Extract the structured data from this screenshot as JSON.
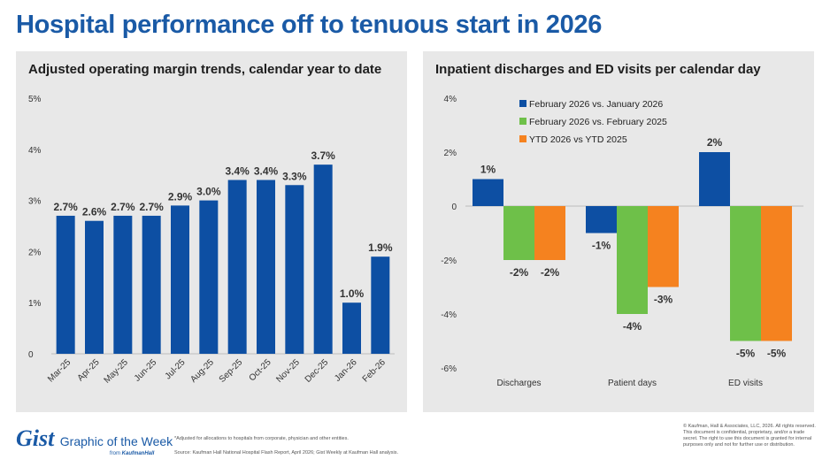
{
  "title": "Hospital performance off to tenuous start in 2026",
  "footer": {
    "logo": "Gist",
    "tagline": "Graphic of the Week",
    "from_text": "from",
    "from_brand": "KaufmanHall",
    "footnote": "*Adjusted for allocations to hospitals from corporate, physician and other entities.",
    "source": "Source: Kaufman Hall National Hospital Flash Report, April 2026; Gist Weekly at Kaufman Hall analysis.",
    "copyright": "© Kaufman, Hall & Associates, LLC, 2026. All rights reserved. This document is confidential, proprietary, and/or a trade secret. The right to use this document is granted for internal purposes only and not for further use or distribution."
  },
  "colors": {
    "title": "#1a5aa6",
    "blue": "#0d4fa3",
    "green": "#6ec049",
    "orange": "#f5821f",
    "panel_bg": "#e8e8e8"
  },
  "chart_data": [
    {
      "type": "bar",
      "title": "Adjusted operating margin trends, calendar year to date",
      "categories": [
        "Mar-25",
        "Apr-25",
        "May-25",
        "Jun-25",
        "Jul-25",
        "Aug-25",
        "Sep-25",
        "Oct-25",
        "Nov-25",
        "Dec-25",
        "Jan-26",
        "Feb-26"
      ],
      "values": [
        2.7,
        2.6,
        2.7,
        2.7,
        2.9,
        3.0,
        3.4,
        3.4,
        3.3,
        3.7,
        1.0,
        1.9
      ],
      "labels": [
        "2.7%",
        "2.6%",
        "2.7%",
        "2.7%",
        "2.9%",
        "3.0%",
        "3.4%",
        "3.4%",
        "3.3%",
        "3.7%",
        "1.0%",
        "1.9%"
      ],
      "yticks": [
        "0",
        "1%",
        "2%",
        "3%",
        "4%",
        "5%"
      ],
      "ylim": [
        0,
        5
      ],
      "grid": false
    },
    {
      "type": "bar",
      "title": "Inpatient discharges and ED visits per calendar day",
      "categories": [
        "Discharges",
        "Patient days",
        "ED visits"
      ],
      "series": [
        {
          "name": "February 2026 vs. January 2026",
          "values": [
            1,
            -1,
            2
          ],
          "labels": [
            "1%",
            "-1%",
            "2%"
          ],
          "color": "#0d4fa3"
        },
        {
          "name": "February 2026 vs. February 2025",
          "values": [
            -2,
            -4,
            -5
          ],
          "labels": [
            "-2%",
            "-4%",
            "-5%"
          ],
          "color": "#6ec049"
        },
        {
          "name": "YTD 2026 vs YTD 2025",
          "values": [
            -2,
            -3,
            -5
          ],
          "labels": [
            "-2%",
            "-3%",
            "-5%"
          ],
          "color": "#f5821f"
        }
      ],
      "yticks": [
        "4%",
        "2%",
        "0",
        "-2%",
        "-4%",
        "-6%"
      ],
      "ylim": [
        -6,
        4
      ],
      "legend": "top",
      "grid": false
    }
  ]
}
